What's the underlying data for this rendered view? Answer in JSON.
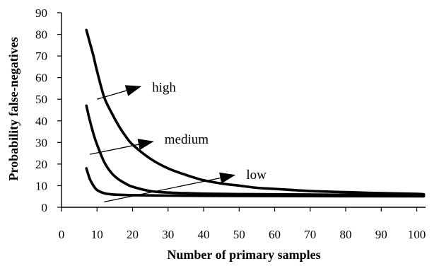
{
  "chart_data": {
    "type": "line",
    "title": "",
    "xlabel": "Number of primary samples",
    "ylabel": "Probability false-negatives",
    "xlim": [
      0,
      102
    ],
    "ylim": [
      0,
      90
    ],
    "xticks": [
      0,
      10,
      20,
      30,
      40,
      50,
      60,
      70,
      80,
      90,
      100
    ],
    "yticks": [
      0,
      10,
      20,
      30,
      40,
      50,
      60,
      70,
      80,
      90
    ],
    "grid": false,
    "legend": "none",
    "series": [
      {
        "name": "high",
        "x": [
          7,
          8,
          9,
          10,
          12,
          14,
          16,
          18,
          20,
          25,
          30,
          35,
          40,
          45,
          50,
          55,
          60,
          70,
          80,
          90,
          100,
          102
        ],
        "y": [
          82,
          76,
          70,
          63,
          51,
          44,
          38,
          33,
          29,
          22.5,
          18,
          15,
          12.5,
          11,
          10,
          9,
          8.5,
          7.5,
          7,
          6.5,
          6.2,
          6
        ]
      },
      {
        "name": "medium",
        "x": [
          7,
          8,
          9,
          10,
          12,
          14,
          16,
          18,
          20,
          25,
          30,
          35,
          40,
          50,
          60,
          80,
          102
        ],
        "y": [
          47,
          40,
          34,
          29,
          21,
          16,
          13,
          11,
          9.5,
          7.5,
          6.8,
          6.5,
          6.3,
          6.1,
          6,
          5.8,
          5.7
        ]
      },
      {
        "name": "low",
        "x": [
          7,
          8,
          9,
          10,
          12,
          14,
          16,
          20,
          25,
          30,
          40,
          60,
          102
        ],
        "y": [
          18,
          13,
          10,
          8,
          6.5,
          6,
          5.8,
          5.6,
          5.5,
          5.4,
          5.3,
          5.2,
          5.1
        ]
      }
    ],
    "annotations": [
      {
        "text": "high",
        "text_at": [
          25.5,
          55.5
        ],
        "arrow_from": [
          10,
          50
        ],
        "arrow_to": [
          22.5,
          56
        ]
      },
      {
        "text": "medium",
        "text_at": [
          29,
          31.5
        ],
        "arrow_from": [
          8,
          24.5
        ],
        "arrow_to": [
          26,
          30.5
        ]
      },
      {
        "text": "low",
        "text_at": [
          52,
          15
        ],
        "arrow_from": [
          12,
          2.5
        ],
        "arrow_to": [
          49,
          15
        ]
      }
    ]
  }
}
